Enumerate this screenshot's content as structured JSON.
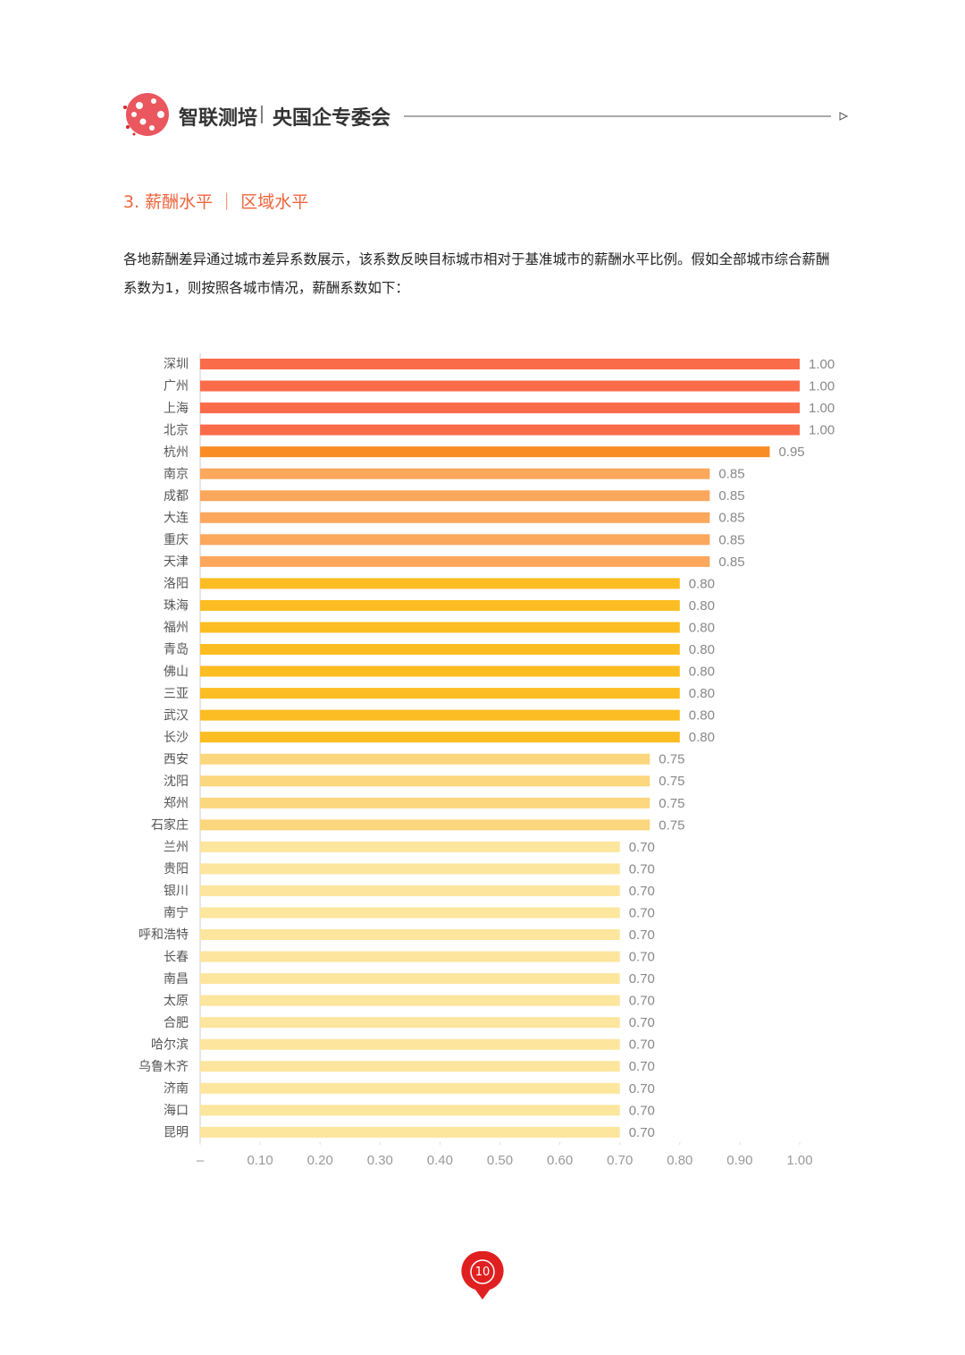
{
  "header": {
    "brand": "智联测培",
    "org": "央国企专委会"
  },
  "section_title": "3. 薪酬水平 ｜ 区域水平",
  "paragraph": "各地薪酬差异通过城市差异系数展示，该系数反映目标城市相对于基准城市的薪酬水平比例。假如全部城市综合薪酬系数为1，则按照各城市情况，薪酬系数如下：",
  "chart_data": {
    "type": "bar",
    "orientation": "horizontal",
    "categories": [
      "深圳",
      "广州",
      "上海",
      "北京",
      "杭州",
      "南京",
      "成都",
      "大连",
      "重庆",
      "天津",
      "洛阳",
      "珠海",
      "福州",
      "青岛",
      "佛山",
      "三亚",
      "武汉",
      "长沙",
      "西安",
      "沈阳",
      "郑州",
      "石家庄",
      "兰州",
      "贵阳",
      "银川",
      "南宁",
      "呼和浩特",
      "长春",
      "南昌",
      "太原",
      "合肥",
      "哈尔滨",
      "乌鲁木齐",
      "济南",
      "海口",
      "昆明"
    ],
    "values": [
      1.0,
      1.0,
      1.0,
      1.0,
      0.95,
      0.85,
      0.85,
      0.85,
      0.85,
      0.85,
      0.8,
      0.8,
      0.8,
      0.8,
      0.8,
      0.8,
      0.8,
      0.8,
      0.75,
      0.75,
      0.75,
      0.75,
      0.7,
      0.7,
      0.7,
      0.7,
      0.7,
      0.7,
      0.7,
      0.7,
      0.7,
      0.7,
      0.7,
      0.7,
      0.7,
      0.7
    ],
    "value_labels": [
      "1.00",
      "1.00",
      "1.00",
      "1.00",
      "0.95",
      "0.85",
      "0.85",
      "0.85",
      "0.85",
      "0.85",
      "0.80",
      "0.80",
      "0.80",
      "0.80",
      "0.80",
      "0.80",
      "0.80",
      "0.80",
      "0.75",
      "0.75",
      "0.75",
      "0.75",
      "0.70",
      "0.70",
      "0.70",
      "0.70",
      "0.70",
      "0.70",
      "0.70",
      "0.70",
      "0.70",
      "0.70",
      "0.70",
      "0.70",
      "0.70",
      "0.70"
    ],
    "colors": [
      "#fa6b4a",
      "#fa6b4a",
      "#fa6b4a",
      "#fa6b4a",
      "#f98c24",
      "#fba75c",
      "#fba75c",
      "#fba75c",
      "#fba75c",
      "#fba75c",
      "#fbbd22",
      "#fbbd22",
      "#fbbd22",
      "#fbbd22",
      "#fbbd22",
      "#fbbd22",
      "#fbbd22",
      "#fbbd22",
      "#fcd67c",
      "#fcd67c",
      "#fcd67c",
      "#fcd67c",
      "#fce59d",
      "#fce59d",
      "#fce59d",
      "#fce59d",
      "#fce59d",
      "#fce59d",
      "#fce59d",
      "#fce59d",
      "#fce59d",
      "#fce59d",
      "#fce59d",
      "#fce59d",
      "#fce59d",
      "#fce59d"
    ],
    "xlim": [
      0,
      1
    ],
    "xticks": [
      {
        "value": 0,
        "label": "–"
      },
      {
        "value": 0.1,
        "label": "0.10"
      },
      {
        "value": 0.2,
        "label": "0.20"
      },
      {
        "value": 0.3,
        "label": "0.30"
      },
      {
        "value": 0.4,
        "label": "0.40"
      },
      {
        "value": 0.5,
        "label": "0.50"
      },
      {
        "value": 0.6,
        "label": "0.60"
      },
      {
        "value": 0.7,
        "label": "0.70"
      },
      {
        "value": 0.8,
        "label": "0.80"
      },
      {
        "value": 0.9,
        "label": "0.90"
      },
      {
        "value": 1,
        "label": "1.00"
      }
    ]
  },
  "page_number": "10"
}
